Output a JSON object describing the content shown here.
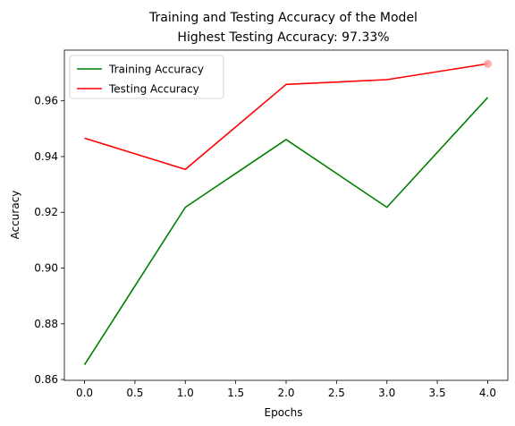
{
  "chart_data": {
    "type": "line",
    "title": "Training and Testing Accuracy of the Model",
    "subtitle": "Highest Testing Accuracy: 97.33%",
    "xlabel": "Epochs",
    "ylabel": "Accuracy",
    "x": [
      0,
      1,
      2,
      3,
      4
    ],
    "xlim": [
      -0.2,
      4.2
    ],
    "ylim": [
      0.8597,
      0.9782
    ],
    "xticks": [
      0.0,
      0.5,
      1.0,
      1.5,
      2.0,
      2.5,
      3.0,
      3.5,
      4.0
    ],
    "xtick_labels": [
      "0.0",
      "0.5",
      "1.0",
      "1.5",
      "2.0",
      "2.5",
      "3.0",
      "3.5",
      "4.0"
    ],
    "yticks": [
      0.86,
      0.88,
      0.9,
      0.92,
      0.94,
      0.96
    ],
    "ytick_labels": [
      "0.86",
      "0.88",
      "0.90",
      "0.92",
      "0.94",
      "0.96"
    ],
    "grid": false,
    "legend_position": "upper-left",
    "series": [
      {
        "name": "Training Accuracy",
        "color": "#008000",
        "values": [
          0.8653,
          0.9218,
          0.9461,
          0.9218,
          0.9612
        ]
      },
      {
        "name": "Testing Accuracy",
        "color": "#ff0000",
        "values": [
          0.9466,
          0.9354,
          0.9659,
          0.9676,
          0.9733
        ]
      }
    ],
    "highlight": {
      "x": 4,
      "y": 0.9733,
      "color": "#ff9999"
    }
  }
}
